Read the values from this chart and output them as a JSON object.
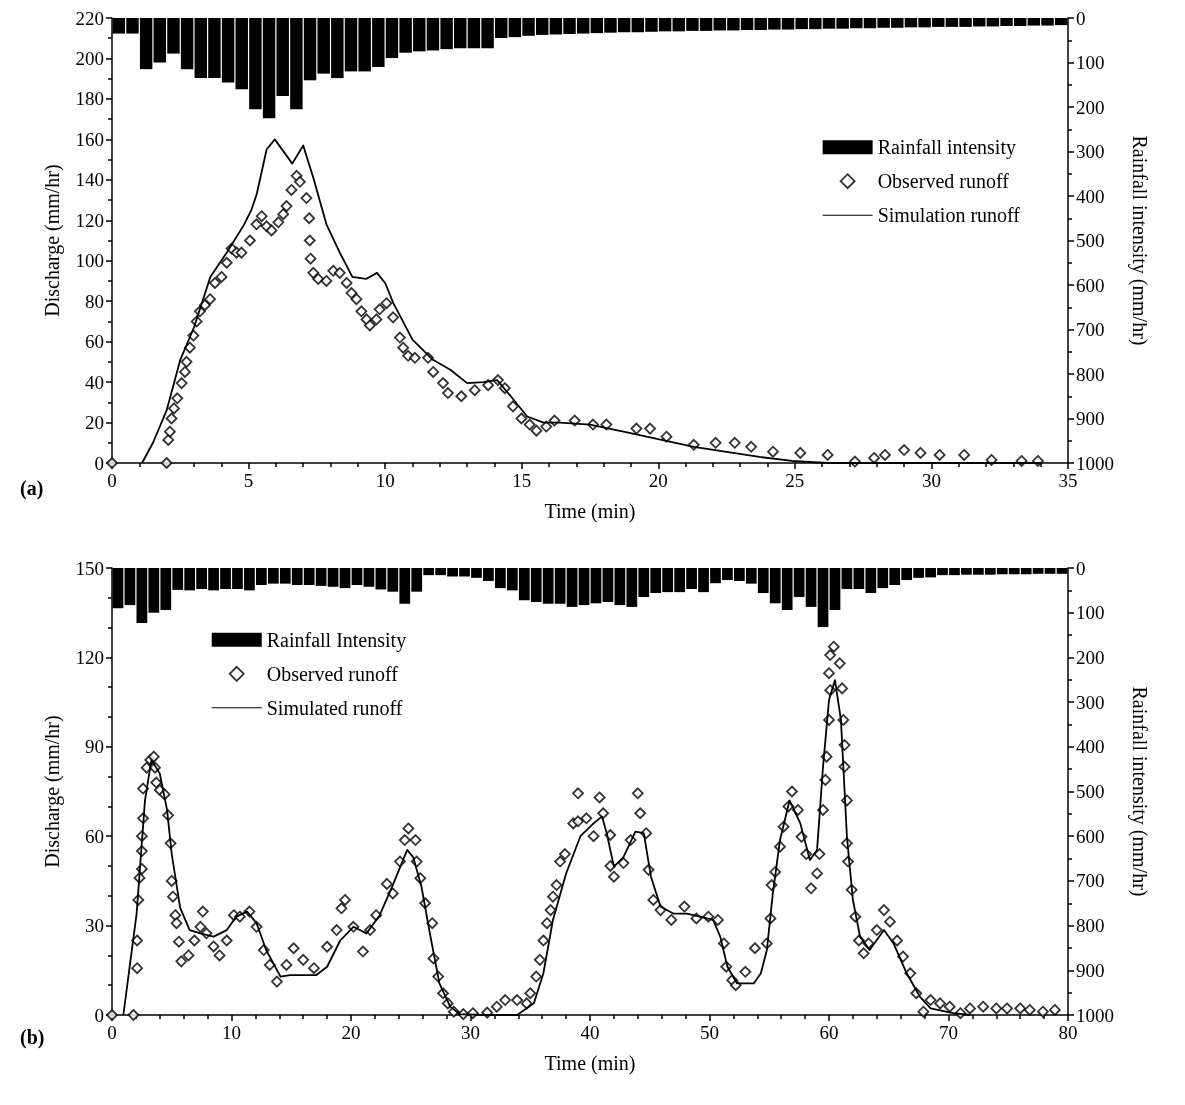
{
  "chart_data": [
    {
      "type": "line",
      "xlabel": "Time (min)",
      "ylabel": "Discharge (mm/hr)",
      "y2label": "Rainfall intensity (mm/hr)",
      "xlim": [
        0,
        35
      ],
      "xticks": [
        0,
        5,
        10,
        15,
        20,
        25,
        30,
        35
      ],
      "ylim": [
        0,
        220
      ],
      "yticks": [
        0,
        20,
        40,
        60,
        80,
        100,
        120,
        140,
        160,
        180,
        200,
        220
      ],
      "y2lim": [
        1000,
        0
      ],
      "y2ticks": [
        0,
        100,
        200,
        300,
        400,
        500,
        600,
        700,
        800,
        900,
        1000
      ],
      "grid": false,
      "legend": "top right",
      "annotations": [
        "(a)"
      ],
      "series": [
        {
          "name": "Rainfall intensity",
          "type": "bar",
          "axis": "y2",
          "color": "#000000",
          "x": [
            0.25,
            0.75,
            1.25,
            1.75,
            2.25,
            2.75,
            3.25,
            3.75,
            4.25,
            4.75,
            5.25,
            5.75,
            6.25,
            6.75,
            7.25,
            7.75,
            8.25,
            8.75,
            9.25,
            9.75,
            10.25,
            10.75,
            11.25,
            11.75,
            12.25,
            12.75,
            13.25,
            13.75,
            14.25,
            14.75,
            15.25,
            15.75,
            16.25,
            16.75,
            17.25,
            17.75,
            18.25,
            18.75,
            19.25,
            19.75,
            20.25,
            20.75,
            21.25,
            21.75,
            22.25,
            22.75,
            23.25,
            23.75,
            24.25,
            24.75,
            25.25,
            25.75,
            26.25,
            26.75,
            27.25,
            27.75,
            28.25,
            28.75,
            29.25,
            29.75,
            30.25,
            30.75,
            31.25,
            31.75,
            32.25,
            32.75,
            33.25,
            33.75,
            34.25,
            34.75
          ],
          "values": [
            35,
            35,
            115,
            100,
            80,
            115,
            135,
            135,
            145,
            160,
            205,
            225,
            175,
            205,
            140,
            125,
            135,
            120,
            120,
            110,
            90,
            78,
            75,
            73,
            70,
            68,
            68,
            68,
            45,
            43,
            40,
            38,
            37,
            36,
            35,
            34,
            33,
            32,
            32,
            31,
            30,
            30,
            29,
            29,
            28,
            28,
            27,
            27,
            26,
            26,
            25,
            25,
            24,
            24,
            23,
            23,
            22,
            22,
            21,
            21,
            20,
            20,
            20,
            19,
            19,
            18,
            18,
            17,
            17,
            16
          ]
        },
        {
          "name": "Observed runoff",
          "type": "scatter",
          "marker": "diamond",
          "color": "#000000",
          "x": [
            0,
            2.0,
            2.06,
            2.12,
            2.18,
            2.27,
            2.39,
            2.55,
            2.67,
            2.73,
            2.85,
            2.98,
            3.1,
            3.22,
            3.4,
            3.59,
            3.77,
            4.01,
            4.2,
            4.38,
            4.56,
            4.74,
            5.05,
            5.29,
            5.48,
            5.66,
            5.84,
            6.09,
            6.27,
            6.39,
            6.57,
            6.76,
            6.88,
            7.12,
            7.22,
            7.24,
            7.27,
            7.37,
            7.55,
            7.85,
            8.1,
            8.34,
            8.59,
            8.77,
            8.95,
            9.13,
            9.32,
            9.44,
            9.68,
            9.8,
            10.05,
            10.29,
            10.54,
            10.66,
            10.84,
            11.09,
            11.57,
            11.76,
            12.12,
            12.3,
            12.79,
            13.28,
            13.77,
            14.13,
            14.38,
            14.68,
            14.99,
            15.29,
            15.54,
            15.9,
            16.2,
            16.94,
            17.61,
            18.1,
            19.2,
            19.7,
            20.3,
            21.3,
            22.1,
            22.8,
            23.4,
            24.2,
            25.2,
            26.2,
            27.2,
            27.9,
            28.3,
            29.0,
            29.6,
            30.3,
            31.2,
            32.2,
            33.3,
            33.9
          ],
          "values": [
            0,
            0,
            11.4,
            15.5,
            22,
            27,
            32,
            39.5,
            45,
            50,
            57,
            63,
            70,
            75,
            78,
            81,
            89,
            92,
            99,
            106,
            104,
            104,
            110,
            118,
            122,
            117,
            115,
            119,
            123,
            127,
            135,
            142,
            139,
            131,
            121,
            110,
            101,
            94,
            91,
            90,
            95,
            94,
            89,
            84,
            81,
            75,
            71,
            68,
            71,
            76,
            79,
            72,
            62,
            57,
            53,
            52,
            52,
            45,
            39.5,
            34.6,
            33,
            36,
            38.5,
            41,
            37,
            28,
            22,
            19,
            16,
            18,
            21,
            21,
            19,
            19,
            17,
            17,
            13,
            9,
            10,
            10,
            8,
            5.6,
            5,
            4,
            0.7,
            2.5,
            4,
            6.4,
            5,
            4,
            4,
            1.5,
            1,
            1
          ]
        },
        {
          "name": "Simulation runoff",
          "marker": "none",
          "color": "#000000",
          "x": [
            1.1,
            1.5,
            2.0,
            2.5,
            3.0,
            3.6,
            4.2,
            4.8,
            5.1,
            5.3,
            5.66,
            5.96,
            6.6,
            7.0,
            7.37,
            7.85,
            8.34,
            8.8,
            9.3,
            9.7,
            10.0,
            10.3,
            11.0,
            11.75,
            12.4,
            13.0,
            13.6,
            14.1,
            14.6,
            15.2,
            15.8,
            16.4,
            17.5,
            18.9,
            21.3,
            23.7,
            24.9,
            26.2,
            34
          ],
          "values": [
            0,
            10,
            26,
            51,
            67,
            92,
            104,
            117,
            125,
            133,
            155,
            160,
            148,
            157,
            141,
            118,
            104,
            92,
            91,
            94,
            89,
            79,
            61,
            51,
            46,
            39.5,
            40,
            41,
            33,
            23,
            20,
            20,
            19,
            15,
            8,
            3,
            1,
            0,
            0
          ]
        }
      ]
    },
    {
      "type": "line",
      "xlabel": "Time (min)",
      "ylabel": "Discharge (mm/hr)",
      "y2label": "Rainfall intensity (mm/hr)",
      "xlim": [
        0,
        80
      ],
      "xticks": [
        0,
        10,
        20,
        30,
        40,
        50,
        60,
        70,
        80
      ],
      "ylim": [
        0,
        150
      ],
      "yticks": [
        0,
        30,
        60,
        90,
        120,
        150
      ],
      "y2lim": [
        1000,
        0
      ],
      "y2ticks": [
        0,
        100,
        200,
        300,
        400,
        500,
        600,
        700,
        800,
        900,
        1000
      ],
      "grid": false,
      "legend": "top left",
      "annotations": [
        "(b)"
      ],
      "series": [
        {
          "name": "Rainfall Intensity",
          "type": "bar",
          "axis": "y2",
          "color": "#000000",
          "x": [
            0.5,
            1.5,
            2.5,
            3.5,
            4.5,
            5.5,
            6.5,
            7.5,
            8.5,
            9.5,
            10.5,
            11.5,
            12.5,
            13.5,
            14.5,
            15.5,
            16.5,
            17.5,
            18.5,
            19.5,
            20.5,
            21.5,
            22.5,
            23.5,
            24.5,
            25.5,
            26.5,
            27.5,
            28.5,
            29.5,
            30.5,
            31.5,
            32.5,
            33.5,
            34.5,
            35.5,
            36.5,
            37.5,
            38.5,
            39.5,
            40.5,
            41.5,
            42.5,
            43.5,
            44.5,
            45.5,
            46.5,
            47.5,
            48.5,
            49.5,
            50.5,
            51.5,
            52.5,
            53.5,
            54.5,
            55.5,
            56.5,
            57.5,
            58.5,
            59.5,
            60.5,
            61.5,
            62.5,
            63.5,
            64.5,
            65.5,
            66.5,
            67.5,
            68.5,
            69.5,
            70.5,
            71.5,
            72.5,
            73.5,
            74.5,
            75.5,
            76.5,
            77.5,
            78.5,
            79.5
          ],
          "values": [
            90,
            83,
            123,
            100,
            94,
            49,
            50,
            47,
            50,
            47,
            47,
            50,
            38,
            35,
            35,
            38,
            38,
            40,
            42,
            45,
            38,
            42,
            48,
            53,
            80,
            53,
            16,
            16,
            19,
            19,
            22,
            29,
            45,
            50,
            72,
            76,
            80,
            80,
            87,
            83,
            79,
            76,
            83,
            87,
            65,
            56,
            54,
            54,
            47,
            54,
            34,
            27,
            29,
            35,
            56,
            79,
            94,
            65,
            87,
            132,
            94,
            47,
            47,
            56,
            45,
            38,
            27,
            22,
            21,
            16,
            16,
            15,
            15,
            15,
            14,
            14,
            14,
            13,
            13,
            13
          ]
        },
        {
          "name": "Observed runoff",
          "type": "scatter",
          "marker": "diamond",
          "color": "#000000",
          "x": [
            0,
            1.8,
            2.1,
            2.1,
            2.2,
            2.3,
            2.5,
            2.5,
            2.5,
            2.6,
            2.6,
            2.9,
            3.2,
            3.5,
            3.6,
            3.7,
            4.0,
            4.4,
            4.7,
            4.9,
            5.0,
            5.1,
            5.3,
            5.4,
            5.6,
            5.8,
            6.4,
            6.9,
            7.4,
            7.6,
            7.9,
            8.5,
            9.0,
            9.6,
            10.2,
            10.7,
            11.5,
            12.1,
            12.7,
            13.2,
            13.8,
            14.6,
            15.2,
            16.0,
            16.9,
            18.0,
            18.8,
            19.2,
            19.5,
            20.2,
            21.0,
            21.6,
            22.1,
            23.0,
            23.5,
            24.1,
            24.5,
            24.8,
            25.4,
            25.5,
            25.8,
            26.2,
            26.8,
            26.9,
            27.3,
            27.7,
            28.1,
            28.6,
            29.4,
            30.2,
            31.4,
            32.2,
            32.9,
            33.9,
            34.7,
            35.0,
            35.5,
            35.8,
            36.1,
            36.4,
            36.7,
            36.9,
            37.2,
            37.5,
            37.9,
            38.6,
            39.0,
            39.0,
            39.7,
            40.3,
            40.8,
            41.1,
            41.7,
            41.7,
            42.0,
            42.8,
            43.4,
            44.0,
            44.2,
            44.7,
            44.9,
            45.3,
            45.9,
            46.8,
            47.9,
            48.9,
            49.9,
            50.7,
            51.2,
            51.4,
            51.9,
            52.2,
            53.0,
            53.8,
            54.8,
            55.1,
            55.2,
            55.5,
            55.9,
            56.2,
            56.6,
            56.9,
            57.4,
            57.7,
            58.1,
            58.5,
            59.0,
            59.2,
            59.5,
            59.7,
            59.8,
            60.0,
            60.1,
            60.0,
            60.1,
            60.4,
            60.9,
            61.1,
            61.2,
            61.3,
            61.3,
            61.5,
            61.5,
            61.6,
            61.9,
            62.2,
            62.5,
            62.9,
            63.3,
            64.0,
            64.6,
            65.1,
            65.7,
            66.2,
            66.8,
            67.3,
            67.9,
            68.5,
            69.3,
            70.1,
            71.0,
            71.8,
            72.9,
            74.0,
            74.9,
            76.0,
            76.8,
            77.9,
            78.9
          ],
          "values": [
            0,
            0,
            15.7,
            25,
            38.6,
            46,
            49,
            55,
            60,
            66,
            76,
            83,
            85.6,
            86.7,
            83,
            78,
            75.5,
            74,
            67,
            57.6,
            45,
            39.7,
            33.5,
            30.8,
            24.6,
            18,
            20,
            25,
            29.6,
            34.7,
            27.4,
            23,
            20,
            25,
            33.5,
            33,
            34.7,
            29.6,
            21.8,
            16.8,
            11.2,
            16.8,
            22.4,
            18.5,
            15.7,
            22.9,
            28.5,
            35.8,
            38.6,
            29.6,
            21.3,
            28.5,
            33.5,
            44,
            40.8,
            51.5,
            58.7,
            62.6,
            58.7,
            51.5,
            45.9,
            37.5,
            30.8,
            19,
            12.9,
            7.3,
            3.9,
            1.1,
            0.3,
            0.6,
            0.8,
            2.8,
            5,
            5,
            3.9,
            7.3,
            12.9,
            18.5,
            25,
            30.8,
            35.2,
            39.7,
            43.6,
            51.5,
            54,
            64.3,
            74.4,
            65,
            66,
            60,
            73,
            67.7,
            60.4,
            50,
            46.4,
            51,
            58.7,
            74.4,
            67.7,
            61,
            48.7,
            38.6,
            35.2,
            31.9,
            36.4,
            32.4,
            33,
            31.9,
            24,
            16.2,
            11.7,
            10,
            14.5,
            22.4,
            24,
            32.4,
            43.6,
            48,
            56.5,
            63.2,
            70,
            75,
            68.8,
            59.8,
            54,
            42.5,
            47.5,
            54,
            68.8,
            78.9,
            86.7,
            99,
            109,
            114.7,
            120.8,
            123.6,
            118,
            109.6,
            99,
            90.6,
            83.3,
            72,
            57.6,
            51.5,
            42,
            33,
            25,
            20.7,
            24,
            28.5,
            35.2,
            31.3,
            25,
            19.6,
            14,
            7.3,
            1.1,
            5,
            3.9,
            2.8,
            0.6,
            2.2,
            2.8,
            2.2,
            2.2,
            2.2,
            1.7,
            1.1,
            1.7
          ]
        },
        {
          "name": "Simulated runoff",
          "marker": "none",
          "color": "#000000",
          "x": [
            0.95,
            2.06,
            2.76,
            3.3,
            4.0,
            4.6,
            5.0,
            5.7,
            6.5,
            7.4,
            8.5,
            9.6,
            10.4,
            11.3,
            12.1,
            12.9,
            14.1,
            14.9,
            15.7,
            17.1,
            18.0,
            19.1,
            20.2,
            21.3,
            22.4,
            23.5,
            24.7,
            25.2,
            25.9,
            26.6,
            27.4,
            28.3,
            29.1,
            31.1,
            33.9,
            35.3,
            36.1,
            36.9,
            38.0,
            39.2,
            40.3,
            41.0,
            41.4,
            42.0,
            42.8,
            43.8,
            44.5,
            45.1,
            45.9,
            47.0,
            48.1,
            49.2,
            50.3,
            50.9,
            51.5,
            52.3,
            53.7,
            54.3,
            54.8,
            55.3,
            55.9,
            56.7,
            57.6,
            58.4,
            59.0,
            59.5,
            60.0,
            60.5,
            61.0,
            61.5,
            62.0,
            62.6,
            63.4,
            64.6,
            65.4,
            66.5,
            67.6,
            68.5,
            70.4,
            71.8
          ],
          "values": [
            0,
            34,
            72,
            85.6,
            81,
            69,
            54,
            36,
            28.5,
            27.4,
            26.3,
            28.5,
            33,
            34.7,
            30.8,
            21.8,
            12.9,
            13.4,
            13.4,
            13.4,
            16.2,
            25,
            29.6,
            27.4,
            33.5,
            43.6,
            55.4,
            53,
            43,
            27.4,
            10.6,
            2.8,
            0.3,
            0,
            0,
            3.9,
            14,
            31.9,
            47.5,
            60,
            64.3,
            66.6,
            61,
            49.8,
            53,
            61.5,
            61,
            46.4,
            36.4,
            34,
            34,
            33,
            31.9,
            26.3,
            16.2,
            10.6,
            10.6,
            14,
            21.8,
            40.8,
            58.7,
            72,
            64.3,
            52,
            55.4,
            83.3,
            105.7,
            112.4,
            99,
            59.8,
            38.6,
            26.3,
            21.8,
            28.5,
            24,
            14,
            6.2,
            2.2,
            0.6,
            0
          ]
        }
      ]
    }
  ]
}
